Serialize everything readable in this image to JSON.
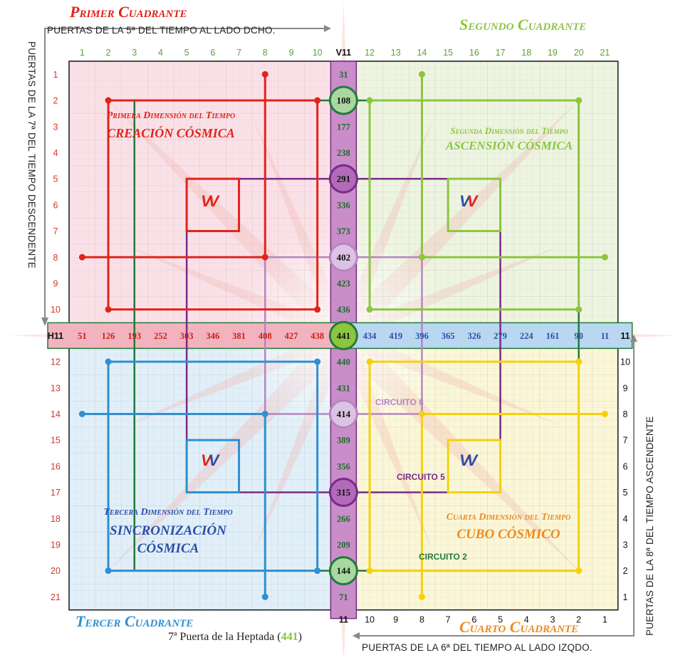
{
  "quadrants": {
    "q1": "Primer Cuadrante",
    "q2": "Segundo Cuadrante",
    "q3": "Tercer Cuadrante",
    "q4": "Cuarto Cuadrante"
  },
  "side_labels": {
    "top": "PUERTAS DE LA 5ª DEL TIEMPO AL LADO DCHO.",
    "left": "PUERTAS DE LA 7ª DEL TIEMPO DESCENDENTE",
    "right": "PUERTAS DE LA 8ª DEL TIEMPO ASCENDENTE",
    "bottom": "PUERTAS DE LA 6ª DEL TIEMPO AL LADO IZQDO."
  },
  "footer": {
    "prefix": "7ª Puerta de la Heptada (",
    "value": "441",
    "suffix": ")"
  },
  "dimensions": {
    "d1_title": "Primera Dimensión del Tiempo",
    "d1_sub": "CREACIÓN CÓSMICA",
    "d2_title": "Segunda Dimensión del Tiempo",
    "d2_sub": "ASCENSIÓN CÓSMICA",
    "d3_title": "Tercera Dimensión del Tiempo",
    "d3_sub1": "SINCRONIZACIÓN",
    "d3_sub2": "CÓSMICA",
    "d4_title": "Cuarta Dimensión del Tiempo",
    "d4_sub": "CUBO CÓSMICO"
  },
  "circuits": {
    "c8": "CIRCUITO 8",
    "c5": "CIRCUITO 5",
    "c2": "CIRCUITO 2"
  },
  "top_numbers": [
    "1",
    "2",
    "3",
    "4",
    "5",
    "6",
    "7",
    "8",
    "9",
    "10",
    "V11",
    "12",
    "13",
    "14",
    "15",
    "16",
    "17",
    "18",
    "19",
    "20",
    "21"
  ],
  "left_numbers": [
    "1",
    "2",
    "3",
    "4",
    "5",
    "6",
    "7",
    "8",
    "9",
    "10",
    "H11",
    "12",
    "13",
    "14",
    "15",
    "16",
    "17",
    "18",
    "19",
    "20",
    "21"
  ],
  "right_numbers": [
    "11",
    "10",
    "9",
    "8",
    "7",
    "6",
    "5",
    "4",
    "3",
    "2",
    "1"
  ],
  "bottom_numbers": [
    "11",
    "10",
    "9",
    "8",
    "7",
    "6",
    "5",
    "4",
    "3",
    "2",
    "1"
  ],
  "vertical_values": [
    "31",
    "108",
    "177",
    "238",
    "291",
    "336",
    "373",
    "402",
    "423",
    "436",
    "441",
    "440",
    "431",
    "414",
    "389",
    "356",
    "315",
    "266",
    "209",
    "144",
    "71"
  ],
  "horizontal_left_values": [
    "51",
    "126",
    "193",
    "252",
    "303",
    "346",
    "381",
    "408",
    "427",
    "438"
  ],
  "horizontal_right_values": [
    "434",
    "419",
    "396",
    "365",
    "326",
    "279",
    "224",
    "161",
    "90",
    "11"
  ],
  "glyph": "VV",
  "colors": {
    "red": "#e2231a",
    "green_light": "#8cc63f",
    "blue": "#2f8fd1",
    "yellow": "#f5d10a",
    "dark_green": "#237a3a",
    "purple": "#7b2a86",
    "lilac": "#b685c2",
    "orange": "#f08a1c"
  }
}
